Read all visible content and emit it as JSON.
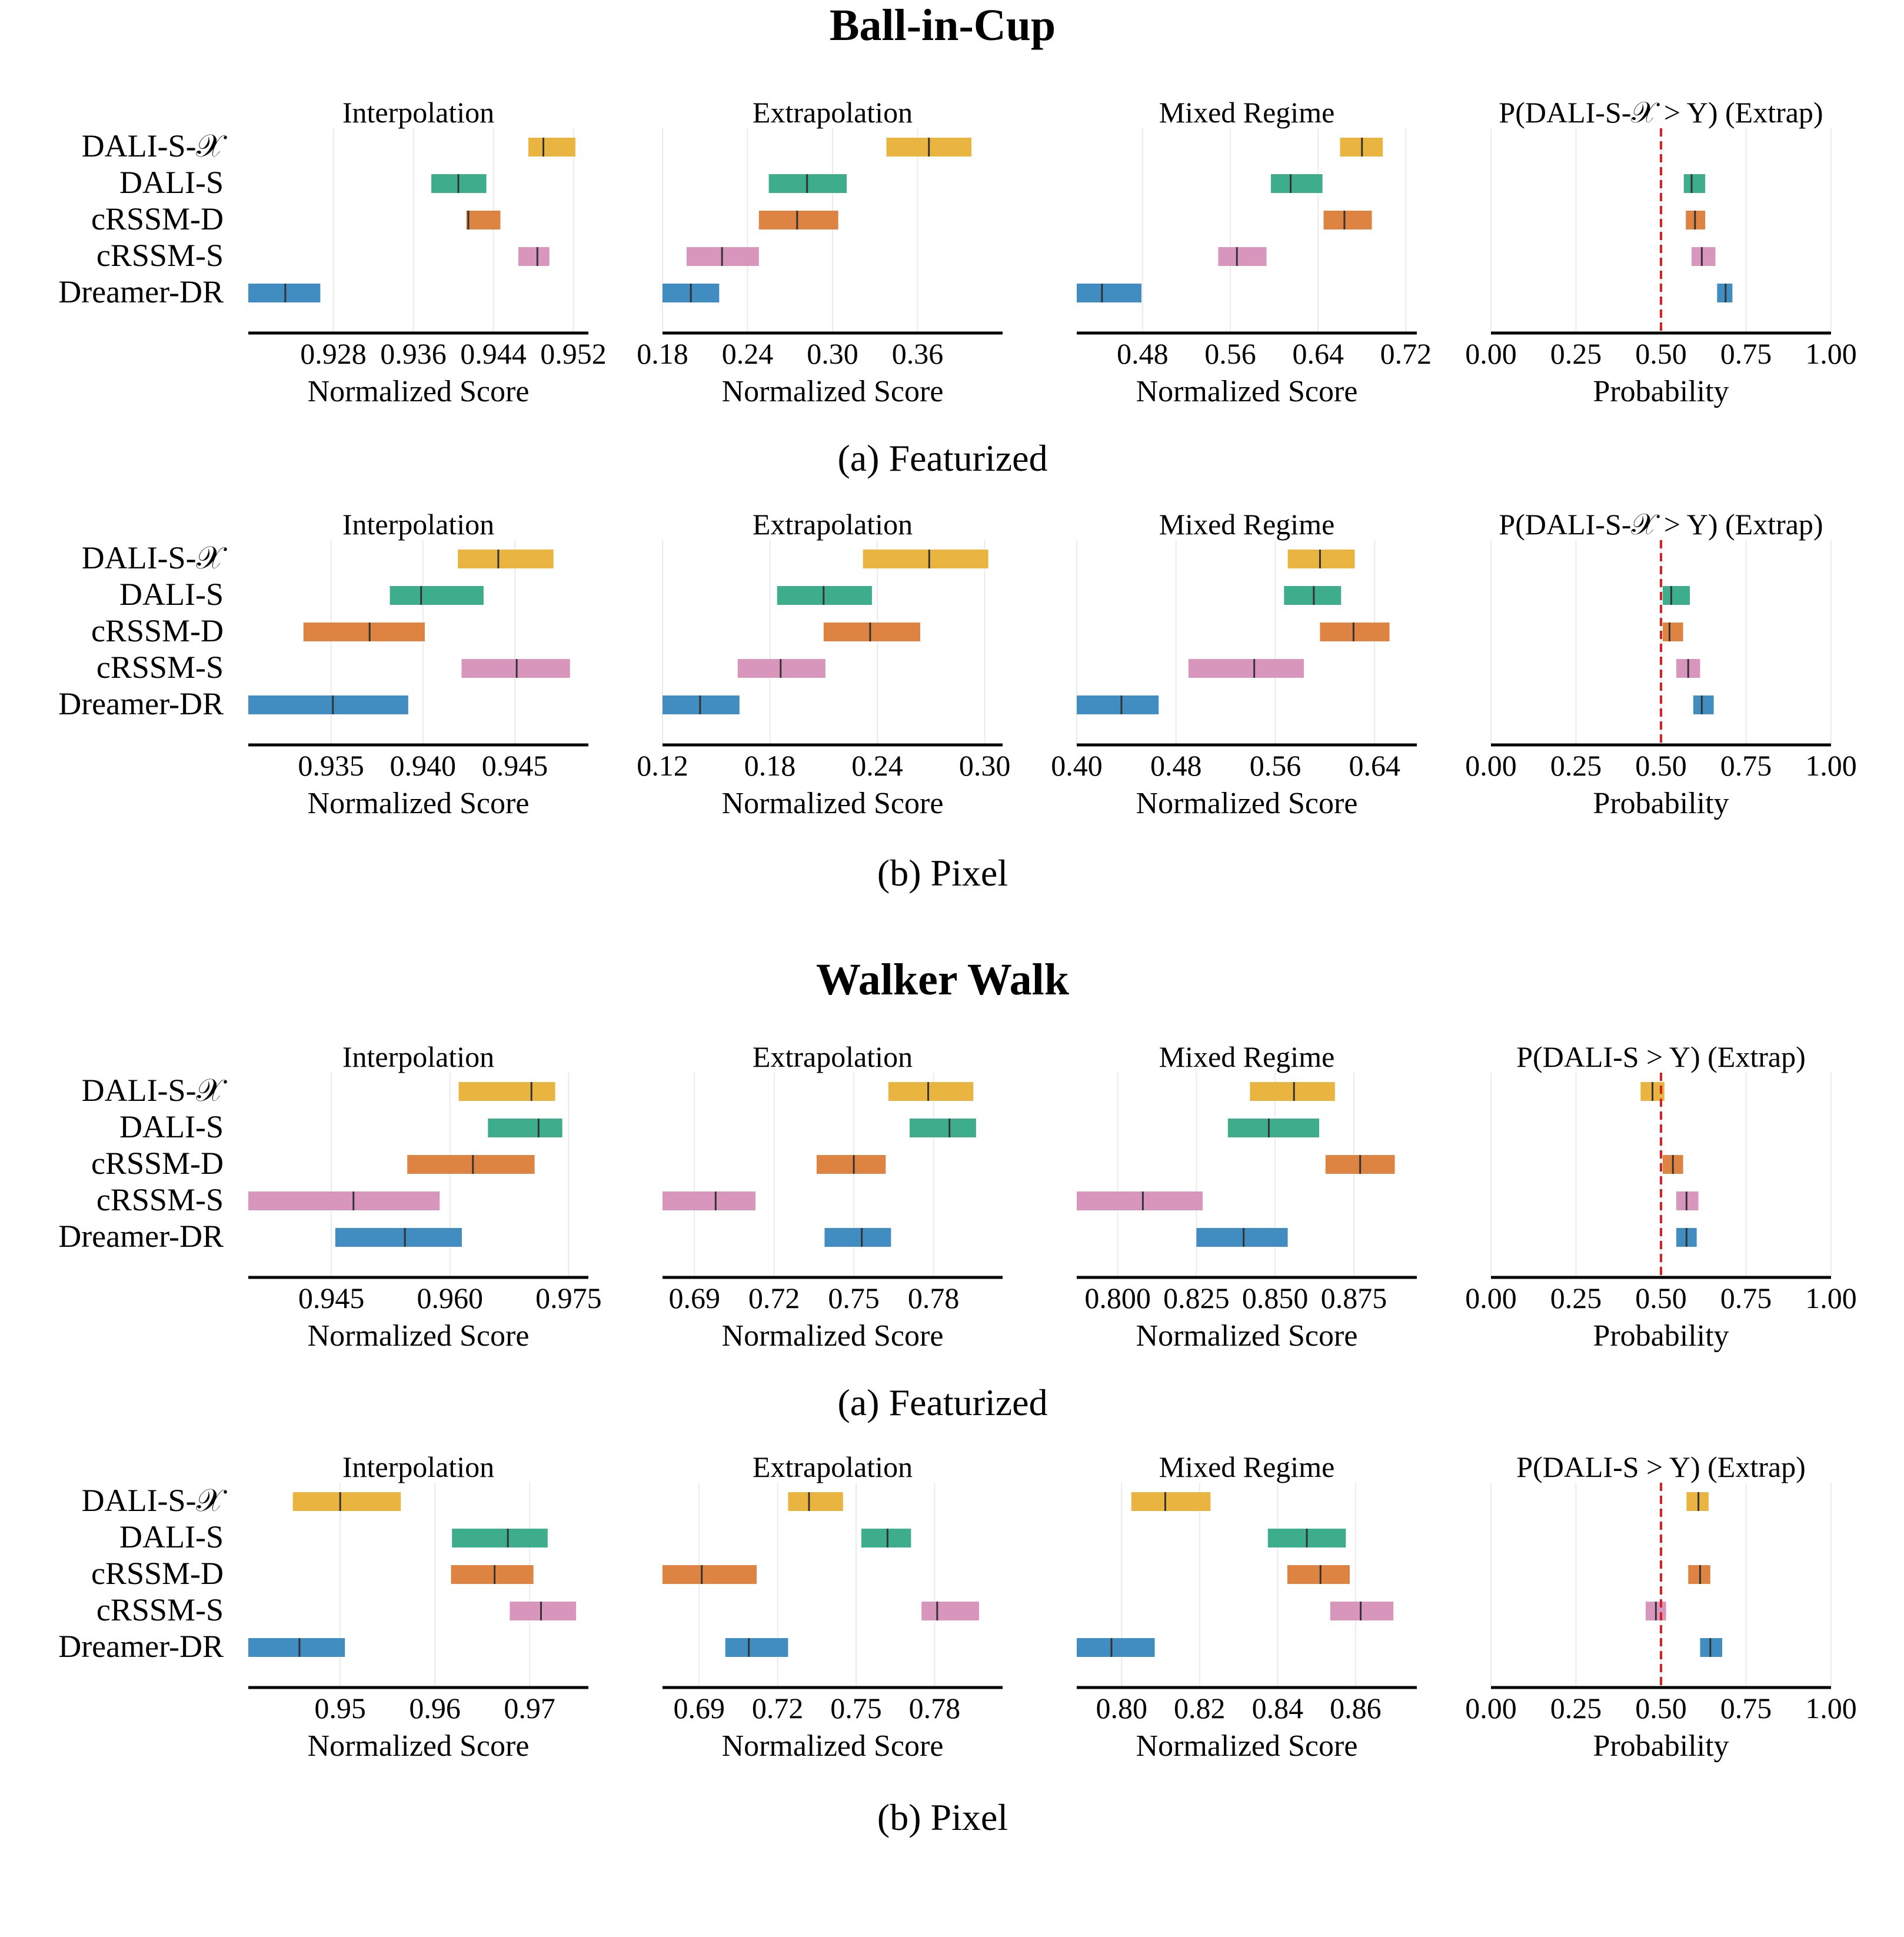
{
  "colors": {
    "DALI-S-X": "#e9b43f",
    "DALI-S": "#3dad8c",
    "cRSSM-D": "#dd8442",
    "cRSSM-S": "#d996bd",
    "Dreamer-DR": "#418cc1",
    "reference_line": "#dc1e1e",
    "grid": "#ebebeb"
  },
  "methods": [
    "DALI-S-𝒳",
    "DALI-S",
    "cRSSM-D",
    "cRSSM-S",
    "Dreamer-DR"
  ],
  "figures": [
    {
      "title": "Ball-in-Cup",
      "rows": [
        {
          "caption": "(a) Featurized",
          "panels": [
            {
              "title": "Interpolation",
              "xlabel": "Normalized Score",
              "xlim": [
                0.9195,
                0.9535
              ],
              "ticks": [
                0.928,
                0.936,
                0.944,
                0.952
              ],
              "tick_labels": [
                "0.928",
                "0.936",
                "0.944",
                "0.952"
              ],
              "bars": [
                [
                  0.9475,
                  0.949,
                  0.9522
                ],
                [
                  0.9378,
                  0.9405,
                  0.9433
                ],
                [
                  0.9413,
                  0.9415,
                  0.9447
                ],
                [
                  0.9465,
                  0.9484,
                  0.9496
                ],
                [
                  0.9195,
                  0.9232,
                  0.9267
                ]
              ]
            },
            {
              "title": "Extrapolation",
              "xlabel": "Normalized Score",
              "xlim": [
                0.18,
                0.42
              ],
              "ticks": [
                0.18,
                0.24,
                0.3,
                0.36
              ],
              "tick_labels": [
                "0.18",
                "0.24",
                "0.30",
                "0.36"
              ],
              "bars": [
                [
                  0.338,
                  0.368,
                  0.398
                ],
                [
                  0.255,
                  0.282,
                  0.31
                ],
                [
                  0.248,
                  0.275,
                  0.304
                ],
                [
                  0.197,
                  0.222,
                  0.248
                ],
                [
                  0.18,
                  0.2,
                  0.22
                ]
              ]
            },
            {
              "title": "Mixed Regime",
              "xlabel": "Normalized Score",
              "xlim": [
                0.42,
                0.73
              ],
              "ticks": [
                0.48,
                0.56,
                0.64,
                0.72
              ],
              "tick_labels": [
                "0.48",
                "0.56",
                "0.64",
                "0.72"
              ],
              "bars": [
                [
                  0.66,
                  0.68,
                  0.699
                ],
                [
                  0.597,
                  0.615,
                  0.644
                ],
                [
                  0.645,
                  0.664,
                  0.689
                ],
                [
                  0.549,
                  0.566,
                  0.593
                ],
                [
                  0.42,
                  0.443,
                  0.479
                ]
              ]
            },
            {
              "title": "P(DALI-S-𝒳 > Y) (Extrap)",
              "xlabel": "Probability",
              "xlim": [
                0,
                1
              ],
              "ticks": [
                0,
                0.25,
                0.5,
                0.75,
                1
              ],
              "tick_labels": [
                "0.00",
                "0.25",
                "0.50",
                "0.75",
                "1.00"
              ],
              "ref": 0.5,
              "bars": [
                null,
                [
                  0.567,
                  0.59,
                  0.63
                ],
                [
                  0.573,
                  0.6,
                  0.63
                ],
                [
                  0.59,
                  0.62,
                  0.66
                ],
                [
                  0.665,
                  0.69,
                  0.71
                ]
              ]
            }
          ]
        },
        {
          "caption": "(b) Pixel",
          "panels": [
            {
              "title": "Interpolation",
              "xlabel": "Normalized Score",
              "xlim": [
                0.9305,
                0.949
              ],
              "ticks": [
                0.935,
                0.94,
                0.945
              ],
              "tick_labels": [
                "0.935",
                "0.940",
                "0.945"
              ],
              "bars": [
                [
                  0.9419,
                  0.9441,
                  0.9471
                ],
                [
                  0.9382,
                  0.9399,
                  0.9433
                ],
                [
                  0.9335,
                  0.9371,
                  0.9401
                ],
                [
                  0.9421,
                  0.9451,
                  0.948
                ],
                [
                  0.9305,
                  0.9351,
                  0.9392
                ]
              ]
            },
            {
              "title": "Extrapolation",
              "xlabel": "Normalized Score",
              "xlim": [
                0.12,
                0.31
              ],
              "ticks": [
                0.12,
                0.18,
                0.24,
                0.3
              ],
              "tick_labels": [
                "0.12",
                "0.18",
                "0.24",
                "0.30"
              ],
              "bars": [
                [
                  0.232,
                  0.269,
                  0.302
                ],
                [
                  0.184,
                  0.21,
                  0.237
                ],
                [
                  0.21,
                  0.236,
                  0.264
                ],
                [
                  0.162,
                  0.186,
                  0.211
                ],
                [
                  0.12,
                  0.141,
                  0.163
                ]
              ]
            },
            {
              "title": "Mixed Regime",
              "xlabel": "Normalized Score",
              "xlim": [
                0.4,
                0.674
              ],
              "ticks": [
                0.4,
                0.48,
                0.56,
                0.64
              ],
              "tick_labels": [
                "0.40",
                "0.48",
                "0.56",
                "0.64"
              ],
              "bars": [
                [
                  0.57,
                  0.596,
                  0.624
                ],
                [
                  0.567,
                  0.591,
                  0.613
                ],
                [
                  0.596,
                  0.623,
                  0.652
                ],
                [
                  0.49,
                  0.543,
                  0.583
                ],
                [
                  0.4,
                  0.436,
                  0.466
                ]
              ]
            },
            {
              "title": "P(DALI-S-𝒳 > Y) (Extrap)",
              "xlabel": "Probability",
              "xlim": [
                0,
                1
              ],
              "ticks": [
                0,
                0.25,
                0.5,
                0.75,
                1
              ],
              "tick_labels": [
                "0.00",
                "0.25",
                "0.50",
                "0.75",
                "1.00"
              ],
              "ref": 0.5,
              "bars": [
                null,
                [
                  0.505,
                  0.53,
                  0.585
                ],
                [
                  0.505,
                  0.525,
                  0.565
                ],
                [
                  0.545,
                  0.58,
                  0.615
                ],
                [
                  0.595,
                  0.62,
                  0.655
                ]
              ]
            }
          ]
        }
      ]
    },
    {
      "title": "Walker Walk",
      "rows": [
        {
          "caption": "(a) Featurized",
          "panels": [
            {
              "title": "Interpolation",
              "xlabel": "Normalized Score",
              "xlim": [
                0.9345,
                0.9775
              ],
              "ticks": [
                0.945,
                0.96,
                0.975
              ],
              "tick_labels": [
                "0.945",
                "0.960",
                "0.975"
              ],
              "bars": [
                [
                  0.9611,
                  0.9703,
                  0.9733
                ],
                [
                  0.9648,
                  0.9712,
                  0.9742
                ],
                [
                  0.9546,
                  0.9629,
                  0.9707
                ],
                [
                  0.9345,
                  0.9478,
                  0.9587
                ],
                [
                  0.9455,
                  0.9543,
                  0.9615
                ]
              ]
            },
            {
              "title": "Extrapolation",
              "xlabel": "Normalized Score",
              "xlim": [
                0.678,
                0.806
              ],
              "ticks": [
                0.69,
                0.72,
                0.75,
                0.78
              ],
              "tick_labels": [
                "0.69",
                "0.72",
                "0.75",
                "0.78"
              ],
              "bars": [
                [
                  0.763,
                  0.778,
                  0.795
                ],
                [
                  0.771,
                  0.786,
                  0.796
                ],
                [
                  0.736,
                  0.75,
                  0.762
                ],
                [
                  0.678,
                  0.698,
                  0.713
                ],
                [
                  0.739,
                  0.753,
                  0.764
                ]
              ]
            },
            {
              "title": "Mixed Regime",
              "xlabel": "Normalized Score",
              "xlim": [
                0.787,
                0.895
              ],
              "ticks": [
                0.8,
                0.825,
                0.85,
                0.875
              ],
              "tick_labels": [
                "0.800",
                "0.825",
                "0.850",
                "0.875"
              ],
              "bars": [
                [
                  0.842,
                  0.856,
                  0.869
                ],
                [
                  0.835,
                  0.848,
                  0.864
                ],
                [
                  0.866,
                  0.877,
                  0.888
                ],
                [
                  0.787,
                  0.808,
                  0.827
                ],
                [
                  0.825,
                  0.84,
                  0.854
                ]
              ]
            },
            {
              "title": "P(DALI-S > Y) (Extrap)",
              "xlabel": "Probability",
              "xlim": [
                0,
                1
              ],
              "ticks": [
                0,
                0.25,
                0.5,
                0.75,
                1
              ],
              "tick_labels": [
                "0.00",
                "0.25",
                "0.50",
                "0.75",
                "1.00"
              ],
              "ref": 0.5,
              "bars": [
                [
                  0.44,
                  0.475,
                  0.51
                ],
                null,
                [
                  0.505,
                  0.535,
                  0.565
                ],
                [
                  0.545,
                  0.575,
                  0.61
                ],
                [
                  0.545,
                  0.575,
                  0.605
                ]
              ]
            }
          ]
        },
        {
          "caption": "(b) Pixel",
          "panels": [
            {
              "title": "Interpolation",
              "xlabel": "Normalized Score",
              "xlim": [
                0.9403,
                0.9762
              ],
              "ticks": [
                0.95,
                0.96,
                0.97
              ],
              "tick_labels": [
                "0.95",
                "0.96",
                "0.97"
              ],
              "bars": [
                [
                  0.945,
                  0.95,
                  0.9564
                ],
                [
                  0.9618,
                  0.9677,
                  0.9719
                ],
                [
                  0.9617,
                  0.9663,
                  0.9704
                ],
                [
                  0.9679,
                  0.9712,
                  0.9749
                ],
                [
                  0.9403,
                  0.9457,
                  0.9505
                ]
              ]
            },
            {
              "title": "Extrapolation",
              "xlabel": "Normalized Score",
              "xlim": [
                0.676,
                0.806
              ],
              "ticks": [
                0.69,
                0.72,
                0.75,
                0.78
              ],
              "tick_labels": [
                "0.69",
                "0.72",
                "0.75",
                "0.78"
              ],
              "bars": [
                [
                  0.724,
                  0.732,
                  0.745
                ],
                [
                  0.752,
                  0.762,
                  0.771
                ],
                [
                  0.676,
                  0.691,
                  0.712
                ],
                [
                  0.775,
                  0.781,
                  0.797
                ],
                [
                  0.7,
                  0.709,
                  0.724
                ]
              ]
            },
            {
              "title": "Mixed Regime",
              "xlabel": "Normalized Score",
              "xlim": [
                0.7885,
                0.8757
              ],
              "ticks": [
                0.8,
                0.82,
                0.84,
                0.86
              ],
              "tick_labels": [
                "0.80",
                "0.82",
                "0.84",
                "0.86"
              ],
              "bars": [
                [
                  0.8025,
                  0.8112,
                  0.8228
                ],
                [
                  0.8375,
                  0.8475,
                  0.8575
                ],
                [
                  0.8425,
                  0.851,
                  0.8585
                ],
                [
                  0.8535,
                  0.8613,
                  0.8697
                ],
                [
                  0.7885,
                  0.7974,
                  0.8085
                ]
              ]
            },
            {
              "title": "P(DALI-S > Y) (Extrap)",
              "xlabel": "Probability",
              "xlim": [
                0,
                1
              ],
              "ticks": [
                0,
                0.25,
                0.5,
                0.75,
                1
              ],
              "tick_labels": [
                "0.00",
                "0.25",
                "0.50",
                "0.75",
                "1.00"
              ],
              "ref": 0.5,
              "bars": [
                [
                  0.575,
                  0.61,
                  0.64
                ],
                null,
                [
                  0.58,
                  0.615,
                  0.645
                ],
                [
                  0.455,
                  0.485,
                  0.515
                ],
                [
                  0.615,
                  0.645,
                  0.68
                ]
              ]
            }
          ]
        }
      ]
    }
  ]
}
